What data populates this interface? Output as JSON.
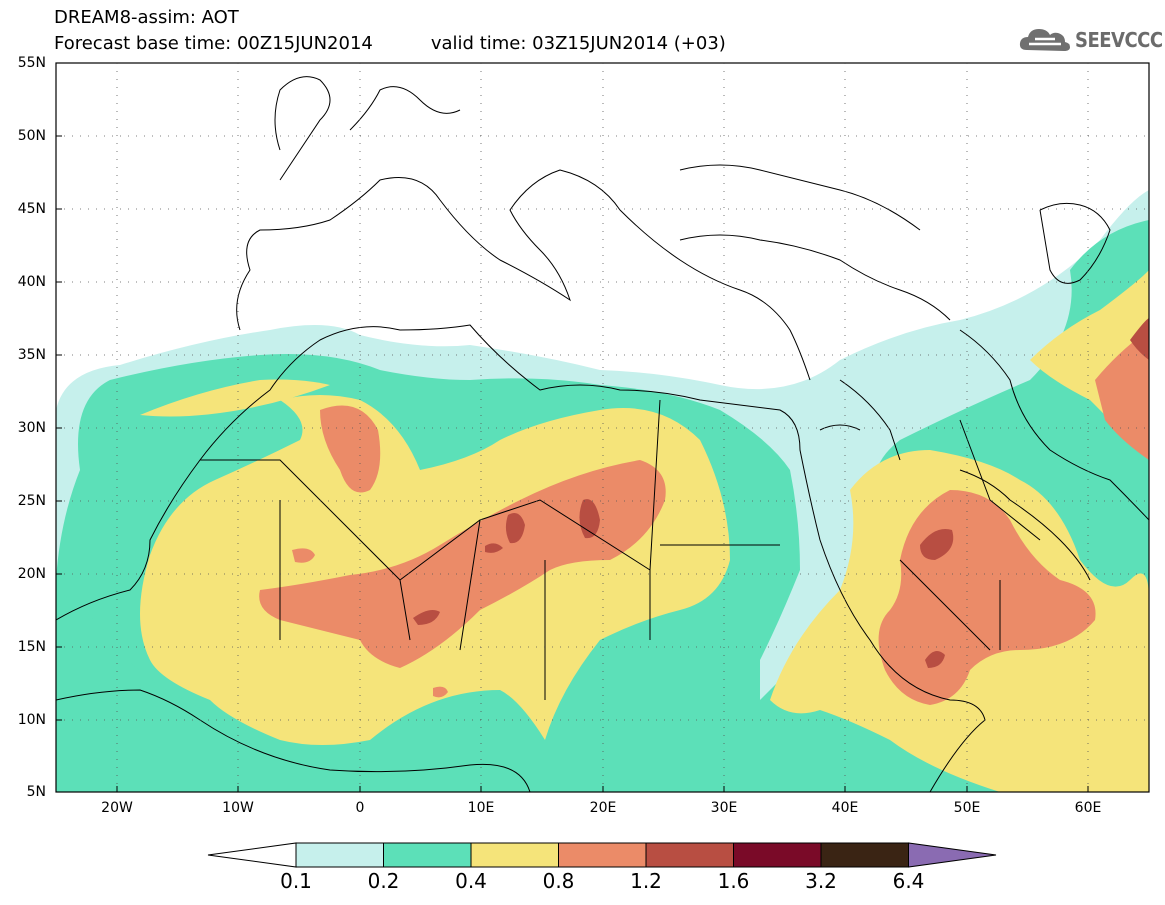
{
  "title": {
    "line1": "DREAM8-assim: AOT",
    "base": "Forecast base time: 00Z15JUN2014",
    "valid": "valid time: 03Z15JUN2014 (+03)"
  },
  "logo": {
    "text": "SEEVCCC",
    "icon": "cloud-icon"
  },
  "axes": {
    "lat_ticks": [
      "55N",
      "50N",
      "45N",
      "40N",
      "35N",
      "30N",
      "25N",
      "20N",
      "15N",
      "10N",
      "5N"
    ],
    "lon_ticks": [
      "20W",
      "10W",
      "0",
      "10E",
      "20E",
      "30E",
      "40E",
      "50E",
      "60E"
    ],
    "lat_range": [
      5,
      55
    ],
    "lon_range": [
      -25,
      65
    ]
  },
  "legend": {
    "thresholds": [
      "0.1",
      "0.2",
      "0.4",
      "0.8",
      "1.2",
      "1.6",
      "3.2",
      "6.4"
    ],
    "colors": [
      "#c6f0ec",
      "#5ce0b8",
      "#f5e47a",
      "#eb8b68",
      "#b84e42",
      "#7a0a28",
      "#3a2414",
      "#8a6bb2"
    ]
  }
}
